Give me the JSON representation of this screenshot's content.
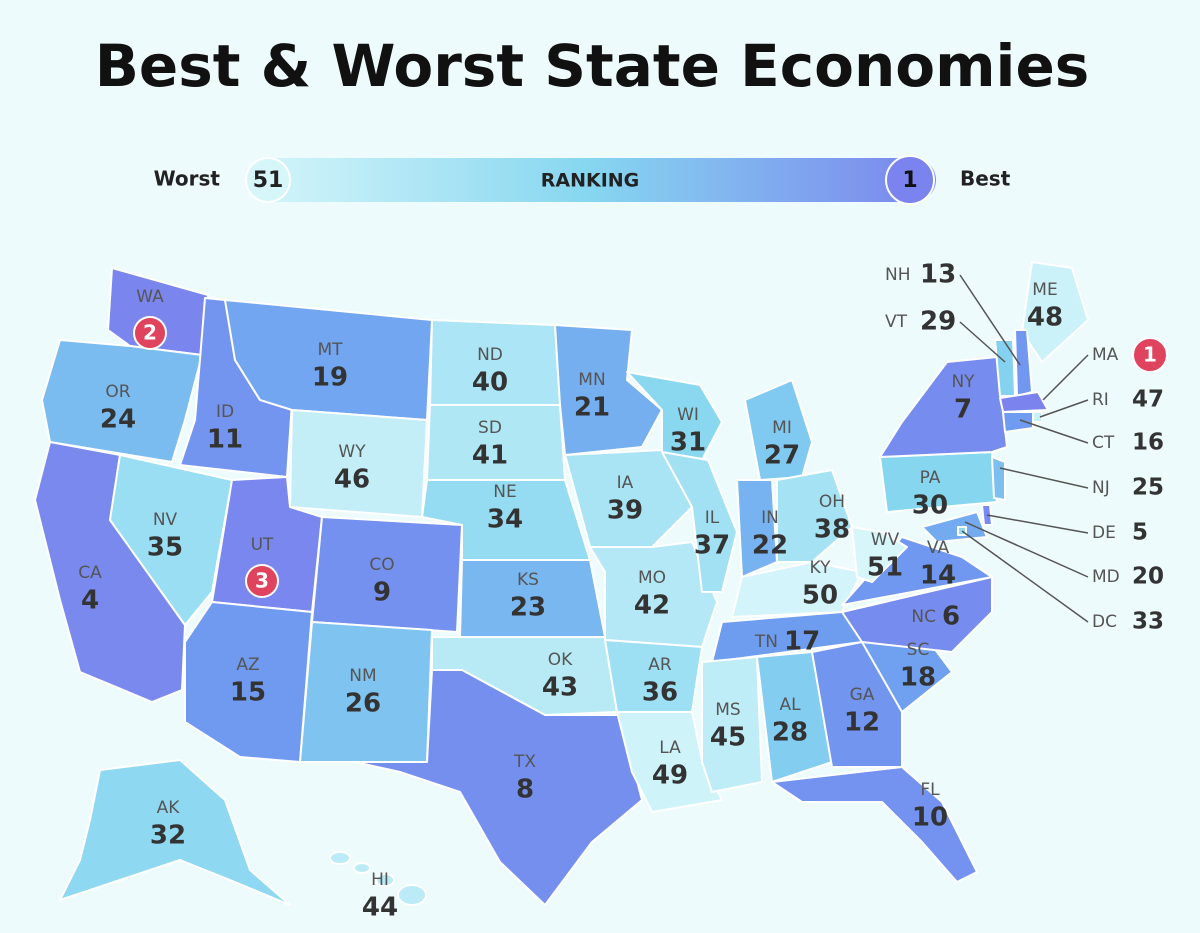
{
  "title": "Best & Worst State Economies",
  "legend": {
    "worst_label": "Worst",
    "worst_rank": 51,
    "label": "RANKING",
    "best_rank": 1,
    "best_label": "Best"
  },
  "states": [
    {
      "abbr": "WA",
      "rank": 2
    },
    {
      "abbr": "OR",
      "rank": 24
    },
    {
      "abbr": "CA",
      "rank": 4
    },
    {
      "abbr": "NV",
      "rank": 35
    },
    {
      "abbr": "ID",
      "rank": 11
    },
    {
      "abbr": "MT",
      "rank": 19
    },
    {
      "abbr": "WY",
      "rank": 46
    },
    {
      "abbr": "UT",
      "rank": 3
    },
    {
      "abbr": "CO",
      "rank": 9
    },
    {
      "abbr": "AZ",
      "rank": 15
    },
    {
      "abbr": "NM",
      "rank": 26
    },
    {
      "abbr": "ND",
      "rank": 40
    },
    {
      "abbr": "SD",
      "rank": 41
    },
    {
      "abbr": "NE",
      "rank": 34
    },
    {
      "abbr": "KS",
      "rank": 23
    },
    {
      "abbr": "OK",
      "rank": 43
    },
    {
      "abbr": "TX",
      "rank": 8
    },
    {
      "abbr": "MN",
      "rank": 21
    },
    {
      "abbr": "IA",
      "rank": 39
    },
    {
      "abbr": "MO",
      "rank": 42
    },
    {
      "abbr": "AR",
      "rank": 36
    },
    {
      "abbr": "LA",
      "rank": 49
    },
    {
      "abbr": "WI",
      "rank": 31
    },
    {
      "abbr": "IL",
      "rank": 37
    },
    {
      "abbr": "MI",
      "rank": 27
    },
    {
      "abbr": "IN",
      "rank": 22
    },
    {
      "abbr": "OH",
      "rank": 38
    },
    {
      "abbr": "KY",
      "rank": 50
    },
    {
      "abbr": "TN",
      "rank": 17
    },
    {
      "abbr": "MS",
      "rank": 45
    },
    {
      "abbr": "AL",
      "rank": 28
    },
    {
      "abbr": "GA",
      "rank": 12
    },
    {
      "abbr": "FL",
      "rank": 10
    },
    {
      "abbr": "SC",
      "rank": 18
    },
    {
      "abbr": "NC",
      "rank": 6
    },
    {
      "abbr": "VA",
      "rank": 14
    },
    {
      "abbr": "WV",
      "rank": 51
    },
    {
      "abbr": "PA",
      "rank": 30
    },
    {
      "abbr": "NY",
      "rank": 7
    },
    {
      "abbr": "ME",
      "rank": 48
    },
    {
      "abbr": "NH",
      "rank": 13
    },
    {
      "abbr": "VT",
      "rank": 29
    },
    {
      "abbr": "MA",
      "rank": 1
    },
    {
      "abbr": "RI",
      "rank": 47
    },
    {
      "abbr": "CT",
      "rank": 16
    },
    {
      "abbr": "NJ",
      "rank": 25
    },
    {
      "abbr": "DE",
      "rank": 5
    },
    {
      "abbr": "MD",
      "rank": 20
    },
    {
      "abbr": "DC",
      "rank": 33
    },
    {
      "abbr": "AK",
      "rank": 32
    },
    {
      "abbr": "HI",
      "rank": 44
    }
  ]
}
